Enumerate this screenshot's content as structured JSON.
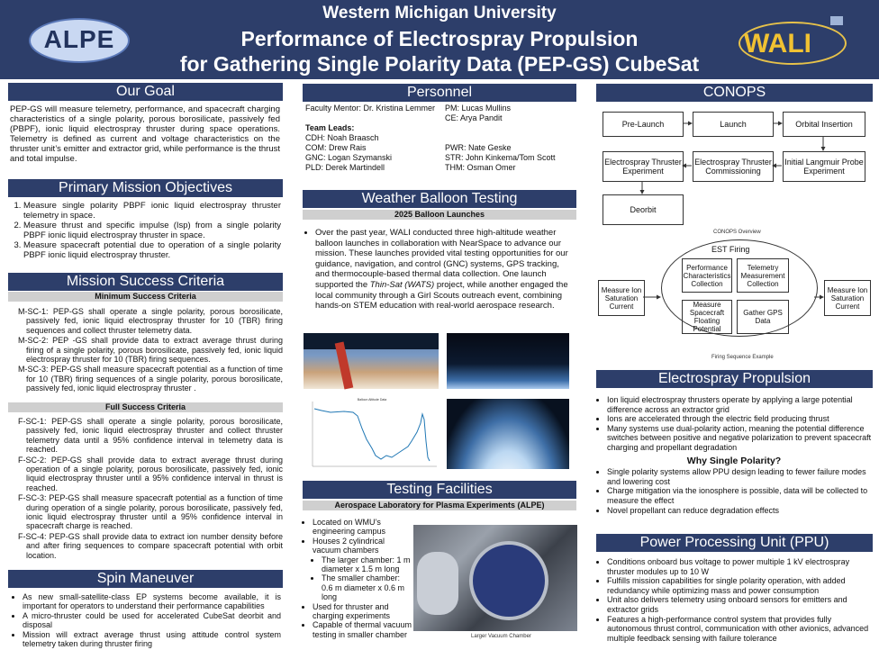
{
  "header": {
    "line1": "Western Michigan University",
    "line2": "Performance of Electrospray Propulsion",
    "line3": "for Gathering Single Polarity Data (PEP-GS) CubeSat",
    "logo_left": "ALPE",
    "logo_right": "WALI"
  },
  "goal": {
    "title": "Our Goal",
    "text": "PEP-GS will measure telemetry, performance, and spacecraft charging characteristics of a single polarity, porous borosilicate, passively fed (PBPF), ionic liquid electrospray thruster during space operations. Telemetry is defined as current and voltage characteristics on the thruster unit’s emitter and extractor grid, while performance is the thrust and total impulse."
  },
  "objectives": {
    "title": "Primary Mission Objectives",
    "items": [
      "Measure  single polarity PBPF ionic liquid electrospray thruster telemetry in space.",
      "Measure thrust and specific impulse (Isp) from a single polarity PBPF ionic liquid electrospray thruster in space.",
      "Measure spacecraft potential due to operation of a single polarity PBPF ionic liquid electrospray thruster."
    ]
  },
  "criteria": {
    "title": "Mission Success Criteria",
    "min_title": "Minimum Success Criteria",
    "min": [
      "M-SC-1: PEP-GS shall operate a single polarity, porous borosilicate, passively fed, ionic liquid electrospray thruster for 10 (TBR) firing sequences and collect thruster telemetry data.",
      "M-SC-2: PEP -GS shall provide data to extract average thrust during firing of a single polarity, porous borosilicate, passively fed, ionic liquid electrospray thruster for 10 (TBR) firing sequences.",
      "M-SC-3: PEP-GS shall measure spacecraft potential as a function of time for 10 (TBR) firing sequences of a single polarity, porous borosilicate, passively fed, ionic liquid electrospray thruster ."
    ],
    "full_title": "Full Success Criteria",
    "full": [
      "F-SC-1: PEP-GS shall operate a single polarity, porous borosilicate, passively fed, ionic liquid electrospray thruster and collect thruster telemetry data until a 95% confidence interval in telemetry data is reached.",
      "F-SC-2: PEP-GS shall provide data to extract average thrust during operation of a single polarity, porous borosilicate, passively fed, ionic liquid electrospray thruster until a 95% confidence interval in thrust is reached.",
      "F-SC-3: PEP-GS shall measure spacecraft potential as a function of time during operation of a single polarity, porous borosilicate, passively fed, ionic liquid electrospray thruster until a 95% confidence interval in spacecraft charge is reached.",
      "F-SC-4: PEP-GS shall provide data to extract ion number density before and after firing sequences to compare spacecraft potential with orbit location."
    ]
  },
  "spin": {
    "title": "Spin Maneuver",
    "items": [
      "As new small-satellite-class EP systems become available, it is important for operators to understand their performance capabilities",
      "A micro-thruster could be used for accelerated CubeSat deorbit and disposal",
      "Mission will extract average thrust using attitude control system telemetry taken during thruster firing"
    ]
  },
  "personnel": {
    "title": "Personnel",
    "mentor": "Faculty Mentor: Dr. Kristina Lemmer",
    "pm": "PM: Lucas Mullins",
    "ce": "CE: Arya Pandit",
    "leads": "Team Leads:",
    "cdh": "CDH:  Noah Braasch",
    "com": "COM: Drew Rais",
    "gnc": "GNC: Logan Szymanski",
    "pld": "PLD:  Derek Martindell",
    "pwr": "PWR: Nate Geske",
    "str": "STR: John Kinkema/Tom Scott",
    "thm": "THM: Osman Omer"
  },
  "balloon": {
    "title": "Weather Balloon Testing",
    "subtitle": "2025 Balloon Launches",
    "text_a": "Over the past year, WALI conducted three high-altitude weather balloon launches in collaboration with NearSpace to advance our mission. These launches provided vital testing opportunities for our guidance, navigation, and control (GNC) systems, GPS tracking, and thermocouple-based thermal data collection. One launch supported the ",
    "text_em": "Thin-Sat (WATS)",
    "text_b": " project, while another engaged the local community through a Girl Scouts outreach event, combining hands-on STEM education with real-world aerospace research.",
    "plot_title": "Balloon Altitude Data"
  },
  "testing": {
    "title": "Testing Facilities",
    "subtitle": "Aerospace Laboratory for Plasma Experiments (ALPE)",
    "items": [
      "Located on WMU’s engineering campus",
      "Houses 2 cylindrical vacuum chambers"
    ],
    "subitems": [
      "The larger chamber: 1 m diameter x 1.5 m long",
      "The smaller  chamber: 0.6 m diameter x 0.6 m long"
    ],
    "items2": [
      "Used for thruster and charging experiments",
      "Capable of thermal vacuum testing in smaller chamber"
    ],
    "caption": "Larger Vacuum Chamber"
  },
  "conops": {
    "title": "CONOPS",
    "boxes": [
      "Pre-Launch",
      "Launch",
      "Orbital Insertion",
      "Electrospray Thruster Experiment",
      "Electrospray Thruster Commissioning",
      "Initial Langmuir Probe Experiment",
      "Deorbit"
    ],
    "overview": "CONOPS Overview",
    "est": "EST Firing",
    "inner": [
      "Performance Characteristics Collection",
      "Telemetry Measurement Collection",
      "Measure Spacecraft Floating Potential",
      "Gather GPS Data"
    ],
    "left": "Measure Ion Saturation Current",
    "right": "Measure Ion Saturation Current",
    "seq": "Firing Sequence Example"
  },
  "electro": {
    "title": "Electrospray Propulsion",
    "items": [
      "Ion liquid electrospray thrusters operate by applying a large potential difference across an extractor grid",
      "Ions are accelerated through the electric field producing thrust",
      "Many systems use dual-polarity action, meaning the potential difference switches between positive and negative polarization to prevent spacecraft charging and propellant degradation"
    ],
    "why": "Why Single Polarity?",
    "items2": [
      "Single polarity systems allow PPU design leading to fewer failure modes and lowering cost",
      "Charge mitigation via the ionosphere is possible, data will be collected to measure the effect",
      "Novel propellant can reduce degradation effects"
    ]
  },
  "ppu": {
    "title": "Power Processing Unit (PPU)",
    "items": [
      "Conditions onboard bus voltage to power multiple 1 kV electrospray thruster modules up to 10 W",
      "Fulfills mission capabilities for single polarity operation, with added redundancy while optimizing mass and power consumption",
      "Unit also delivers telemetry using onboard sensors for emitters and extractor grids",
      "Features a high-performance control system that provides fully autonomous thrust control, communication with other avionics, advanced multiple feedback sensing with failure tolerance"
    ]
  },
  "colors": {
    "header": "#2d3e6a",
    "subbar": "#cfcfcf"
  }
}
